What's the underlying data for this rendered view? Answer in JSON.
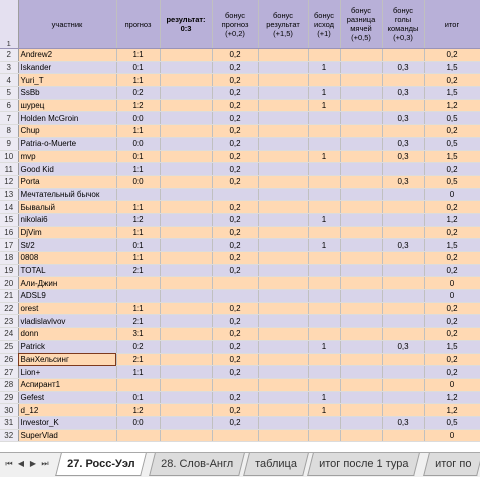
{
  "headers": {
    "row_num": "1",
    "name": "участник",
    "prognoz": "прогноз",
    "result": "результат: 0:3",
    "bonus_prognoz": "бонус прогноз (+0,2)",
    "bonus_result": "бонус результат (+1,5)",
    "bonus_ishod": "бонус исход (+1)",
    "bonus_diff": "бонус разница мячей (+0,5)",
    "bonus_goals": "бонус голы команды (+0,3)",
    "itog": "итог"
  },
  "rows": [
    {
      "n": "2",
      "name": "Andrew2",
      "prognoz": "1:1",
      "bp": "0,2",
      "br": "",
      "bi": "",
      "bd": "",
      "bg": "",
      "tot": "0,2"
    },
    {
      "n": "3",
      "name": "Iskander",
      "prognoz": "0:1",
      "bp": "0,2",
      "br": "",
      "bi": "1",
      "bd": "",
      "bg": "0,3",
      "tot": "1,5"
    },
    {
      "n": "4",
      "name": "Yuri_T",
      "prognoz": "1:1",
      "bp": "0,2",
      "br": "",
      "bi": "",
      "bd": "",
      "bg": "",
      "tot": "0,2"
    },
    {
      "n": "5",
      "name": "SsBb",
      "prognoz": "0:2",
      "bp": "0,2",
      "br": "",
      "bi": "1",
      "bd": "",
      "bg": "0,3",
      "tot": "1,5"
    },
    {
      "n": "6",
      "name": "шурец",
      "prognoz": "1:2",
      "bp": "0,2",
      "br": "",
      "bi": "1",
      "bd": "",
      "bg": "",
      "tot": "1,2"
    },
    {
      "n": "7",
      "name": "Holden McGroin",
      "prognoz": "0:0",
      "bp": "0,2",
      "br": "",
      "bi": "",
      "bd": "",
      "bg": "0,3",
      "tot": "0,5"
    },
    {
      "n": "8",
      "name": "Chup",
      "prognoz": "1:1",
      "bp": "0,2",
      "br": "",
      "bi": "",
      "bd": "",
      "bg": "",
      "tot": "0,2"
    },
    {
      "n": "9",
      "name": "Patria-o-Muerte",
      "prognoz": "0:0",
      "bp": "0,2",
      "br": "",
      "bi": "",
      "bd": "",
      "bg": "0,3",
      "tot": "0,5"
    },
    {
      "n": "10",
      "name": "mvp",
      "prognoz": "0:1",
      "bp": "0,2",
      "br": "",
      "bi": "1",
      "bd": "",
      "bg": "0,3",
      "tot": "1,5"
    },
    {
      "n": "11",
      "name": "Good Kid",
      "prognoz": "1:1",
      "bp": "0,2",
      "br": "",
      "bi": "",
      "bd": "",
      "bg": "",
      "tot": "0,2"
    },
    {
      "n": "12",
      "name": "Porta",
      "prognoz": "0:0",
      "bp": "0,2",
      "br": "",
      "bi": "",
      "bd": "",
      "bg": "0,3",
      "tot": "0,5"
    },
    {
      "n": "13",
      "name": "Мечтательный бычок",
      "prognoz": "",
      "bp": "",
      "br": "",
      "bi": "",
      "bd": "",
      "bg": "",
      "tot": "0"
    },
    {
      "n": "14",
      "name": "Бывалый",
      "prognoz": "1:1",
      "bp": "0,2",
      "br": "",
      "bi": "",
      "bd": "",
      "bg": "",
      "tot": "0,2"
    },
    {
      "n": "15",
      "name": "nikolai6",
      "prognoz": "1:2",
      "bp": "0,2",
      "br": "",
      "bi": "1",
      "bd": "",
      "bg": "",
      "tot": "1,2"
    },
    {
      "n": "16",
      "name": "DjVim",
      "prognoz": "1:1",
      "bp": "0,2",
      "br": "",
      "bi": "",
      "bd": "",
      "bg": "",
      "tot": "0,2"
    },
    {
      "n": "17",
      "name": "St/2",
      "prognoz": "0:1",
      "bp": "0,2",
      "br": "",
      "bi": "1",
      "bd": "",
      "bg": "0,3",
      "tot": "1,5"
    },
    {
      "n": "18",
      "name": "0808",
      "prognoz": "1:1",
      "bp": "0,2",
      "br": "",
      "bi": "",
      "bd": "",
      "bg": "",
      "tot": "0,2"
    },
    {
      "n": "19",
      "name": "TOTAL",
      "prognoz": "2:1",
      "bp": "0,2",
      "br": "",
      "bi": "",
      "bd": "",
      "bg": "",
      "tot": "0,2"
    },
    {
      "n": "20",
      "name": "Али-Джин",
      "prognoz": "",
      "bp": "",
      "br": "",
      "bi": "",
      "bd": "",
      "bg": "",
      "tot": "0"
    },
    {
      "n": "21",
      "name": "ADSL9",
      "prognoz": "",
      "bp": "",
      "br": "",
      "bi": "",
      "bd": "",
      "bg": "",
      "tot": "0"
    },
    {
      "n": "22",
      "name": "orest",
      "prognoz": "1:1",
      "bp": "0,2",
      "br": "",
      "bi": "",
      "bd": "",
      "bg": "",
      "tot": "0,2"
    },
    {
      "n": "23",
      "name": "vladislavlvov",
      "prognoz": "2:1",
      "bp": "0,2",
      "br": "",
      "bi": "",
      "bd": "",
      "bg": "",
      "tot": "0,2"
    },
    {
      "n": "24",
      "name": "donn",
      "prognoz": "3:1",
      "bp": "0,2",
      "br": "",
      "bi": "",
      "bd": "",
      "bg": "",
      "tot": "0,2"
    },
    {
      "n": "25",
      "name": "Patrick",
      "prognoz": "0:2",
      "bp": "0,2",
      "br": "",
      "bi": "1",
      "bd": "",
      "bg": "0,3",
      "tot": "1,5"
    },
    {
      "n": "26",
      "name": "ВанХельсинг",
      "prognoz": "2:1",
      "bp": "0,2",
      "br": "",
      "bi": "",
      "bd": "",
      "bg": "",
      "tot": "0,2"
    },
    {
      "n": "27",
      "name": "Lion+",
      "prognoz": "1:1",
      "bp": "0,2",
      "br": "",
      "bi": "",
      "bd": "",
      "bg": "",
      "tot": "0,2"
    },
    {
      "n": "28",
      "name": "Аспирант1",
      "prognoz": "",
      "bp": "",
      "br": "",
      "bi": "",
      "bd": "",
      "bg": "",
      "tot": "0"
    },
    {
      "n": "29",
      "name": "Gefest",
      "prognoz": "0:1",
      "bp": "0,2",
      "br": "",
      "bi": "1",
      "bd": "",
      "bg": "",
      "tot": "1,2"
    },
    {
      "n": "30",
      "name": "d_12",
      "prognoz": "1:2",
      "bp": "0,2",
      "br": "",
      "bi": "1",
      "bd": "",
      "bg": "",
      "tot": "1,2"
    },
    {
      "n": "31",
      "name": "Investor_K",
      "prognoz": "0:0",
      "bp": "0,2",
      "br": "",
      "bi": "",
      "bd": "",
      "bg": "0,3",
      "tot": "0,5"
    },
    {
      "n": "32",
      "name": "SuperVlad",
      "prognoz": "",
      "bp": "",
      "br": "",
      "bi": "",
      "bd": "",
      "bg": "",
      "tot": "0"
    }
  ],
  "tabs": [
    {
      "label": "27. Росс-Уэл",
      "active": true
    },
    {
      "label": "28. Слов-Англ",
      "active": false
    },
    {
      "label": "таблица",
      "active": false
    },
    {
      "label": "итог после 1 тура",
      "active": false
    },
    {
      "label": "итог по",
      "active": false
    }
  ],
  "nav_buttons": [
    "first",
    "prev",
    "next",
    "last"
  ],
  "colors": {
    "row_odd": "#ffd9b3",
    "row_even": "#d8d4ea",
    "header": "#b8b0d8"
  }
}
